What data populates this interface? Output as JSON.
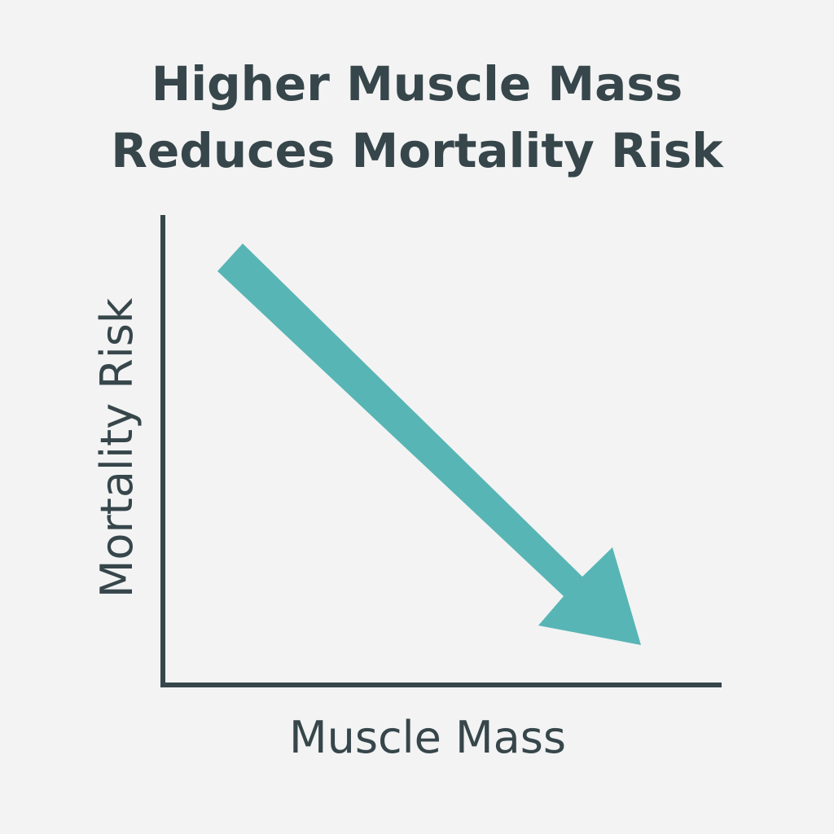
{
  "chart_data": {
    "type": "line",
    "title": [
      "Higher Muscle Mass",
      "Reduces Mortality Risk"
    ],
    "xlabel": "Muscle Mass",
    "ylabel": "Mortality Risk",
    "x_ticks": [],
    "y_ticks": [],
    "trend": "decreasing",
    "grid": false,
    "legend": "none",
    "colors": {
      "arrow": "#58b5b5",
      "axis": "#36464b",
      "text": "#36464b",
      "background": "#f3f3f3"
    }
  }
}
